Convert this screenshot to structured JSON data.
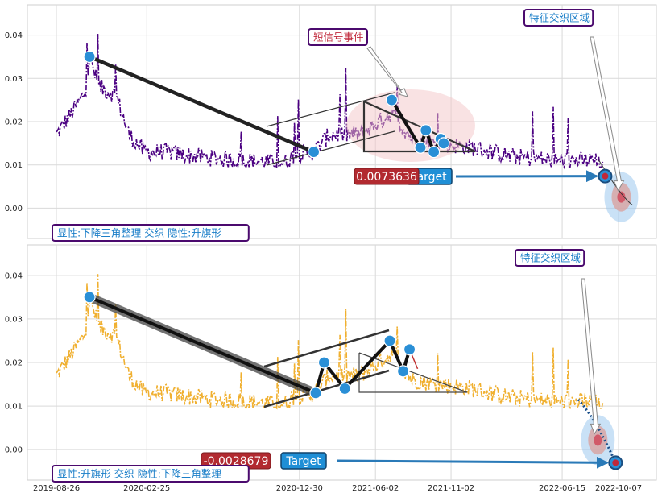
{
  "chart_data": [
    {
      "type": "line",
      "series_color": "#4b0082",
      "line_style": "dashdot",
      "ylim": [
        -0.007,
        0.047
      ],
      "y_ticks": [
        "0.00",
        "0.01",
        "0.02",
        "0.03",
        "0.04"
      ],
      "grid": true,
      "annotations": {
        "callout": "短信号事件",
        "region": "特征交织区域",
        "value_badge": "0.0073636",
        "target_label": "Target",
        "pattern_label": "显性:下降三角整理 交织 隐性:升旗形"
      },
      "key_points": [
        {
          "x": "2019-11-01",
          "y": 0.035
        },
        {
          "x": "2021-01-28",
          "y": 0.013
        },
        {
          "x": "2021-07-05",
          "y": 0.025
        },
        {
          "x": "2021-09-01",
          "y": 0.014
        },
        {
          "x": "2021-09-12",
          "y": 0.018
        },
        {
          "x": "2021-09-28",
          "y": 0.013
        },
        {
          "x": "2021-10-12",
          "y": 0.016
        },
        {
          "x": "2021-10-18",
          "y": 0.015
        },
        {
          "x": "2022-09-10",
          "y": 0.0074
        }
      ]
    },
    {
      "type": "line",
      "series_color": "#f0b030",
      "line_style": "dashdot",
      "ylim": [
        -0.007,
        0.047
      ],
      "y_ticks": [
        "0.00",
        "0.01",
        "0.02",
        "0.03",
        "0.04"
      ],
      "x_ticks": [
        "2019-08-26",
        "2020-02-25",
        "2020-12-30",
        "2021-06-02",
        "2021-11-02",
        "2022-06-15",
        "2022-10-07"
      ],
      "grid": true,
      "annotations": {
        "region": "特征交织区域",
        "value_badge": "-0.0028679",
        "target_label": "Target",
        "pattern_label": "显性:升旗形 交织 隐性:下降三角整理"
      },
      "key_points": [
        {
          "x": "2019-11-01",
          "y": 0.035
        },
        {
          "x": "2021-02-01",
          "y": 0.013
        },
        {
          "x": "2021-02-18",
          "y": 0.02
        },
        {
          "x": "2021-04-01",
          "y": 0.014
        },
        {
          "x": "2021-07-01",
          "y": 0.025
        },
        {
          "x": "2021-07-28",
          "y": 0.018
        },
        {
          "x": "2021-08-10",
          "y": 0.023
        },
        {
          "x": "2022-10-01",
          "y": -0.003
        }
      ]
    }
  ]
}
